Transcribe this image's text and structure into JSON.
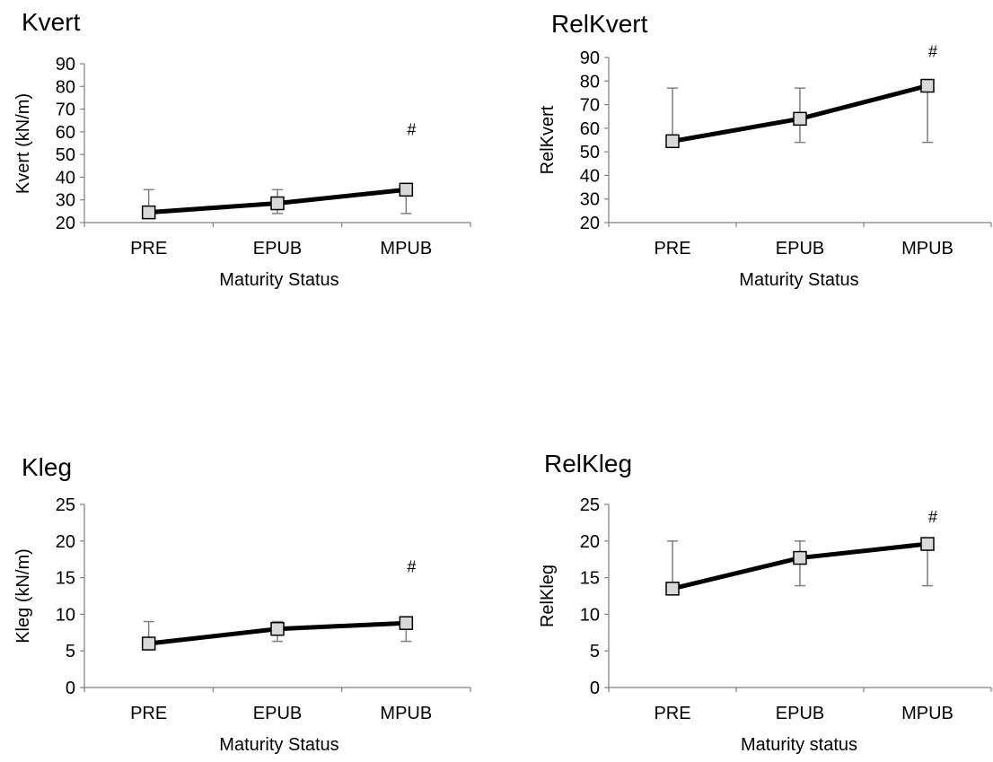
{
  "figure": {
    "colors": {
      "line": "#000000",
      "marker_fill": "#d9d9d9",
      "marker_stroke": "#000000",
      "error_bar": "#7f7f7f",
      "axis": "#7f7f7f"
    }
  },
  "chart_data": [
    {
      "type": "line",
      "title": "Kvert",
      "xlabel": "Maturity Status",
      "ylabel": "Kvert (kN/m)",
      "categories": [
        "PRE",
        "EPUB",
        "MPUB"
      ],
      "ylim": [
        20,
        90
      ],
      "yticks": [
        "20",
        "30",
        "40",
        "50",
        "60",
        "70",
        "80",
        "90"
      ],
      "grid": false,
      "series": [
        {
          "values": [
            24.5,
            28.5,
            34.5
          ],
          "err_upper": [
            34.5,
            34.5,
            34.5
          ],
          "err_lower": [
            null,
            24.0,
            24.0
          ]
        }
      ],
      "annotations": [
        {
          "category": "MPUB",
          "text": "#",
          "y": 61
        }
      ]
    },
    {
      "type": "line",
      "title": "RelKvert",
      "xlabel": "Maturity Status",
      "ylabel": "RelKvert",
      "categories": [
        "PRE",
        "EPUB",
        "MPUB"
      ],
      "ylim": [
        20,
        90
      ],
      "yticks": [
        "20",
        "30",
        "40",
        "50",
        "60",
        "70",
        "80",
        "90"
      ],
      "grid": false,
      "series": [
        {
          "values": [
            54.5,
            64.0,
            78.0
          ],
          "err_upper": [
            77.0,
            77.0,
            null
          ],
          "err_lower": [
            null,
            54.0,
            54.0
          ]
        }
      ],
      "annotations": [
        {
          "category": "MPUB",
          "text": "#",
          "y": 92.5
        }
      ]
    },
    {
      "type": "line",
      "title": "Kleg",
      "xlabel": "Maturity Status",
      "ylabel": "Kleg (kN/m)",
      "categories": [
        "PRE",
        "EPUB",
        "MPUB"
      ],
      "ylim": [
        0,
        25
      ],
      "yticks": [
        "0",
        "5",
        "10",
        "15",
        "20",
        "25"
      ],
      "grid": false,
      "series": [
        {
          "values": [
            6.0,
            8.0,
            8.8
          ],
          "err_upper": [
            9.0,
            9.0,
            null
          ],
          "err_lower": [
            null,
            6.3,
            6.3
          ]
        }
      ],
      "annotations": [
        {
          "category": "MPUB",
          "text": "#",
          "y": 16.5
        }
      ]
    },
    {
      "type": "line",
      "title": "RelKleg",
      "xlabel": "Maturity status",
      "ylabel": "RelKleg",
      "categories": [
        "PRE",
        "EPUB",
        "MPUB"
      ],
      "ylim": [
        0,
        25
      ],
      "yticks": [
        "0",
        "5",
        "10",
        "15",
        "20",
        "25"
      ],
      "grid": false,
      "series": [
        {
          "values": [
            13.5,
            17.7,
            19.6
          ],
          "err_upper": [
            20.0,
            20.0,
            null
          ],
          "err_lower": [
            null,
            13.9,
            13.9
          ]
        }
      ],
      "annotations": [
        {
          "category": "MPUB",
          "text": "#",
          "y": 23.3
        }
      ]
    }
  ]
}
